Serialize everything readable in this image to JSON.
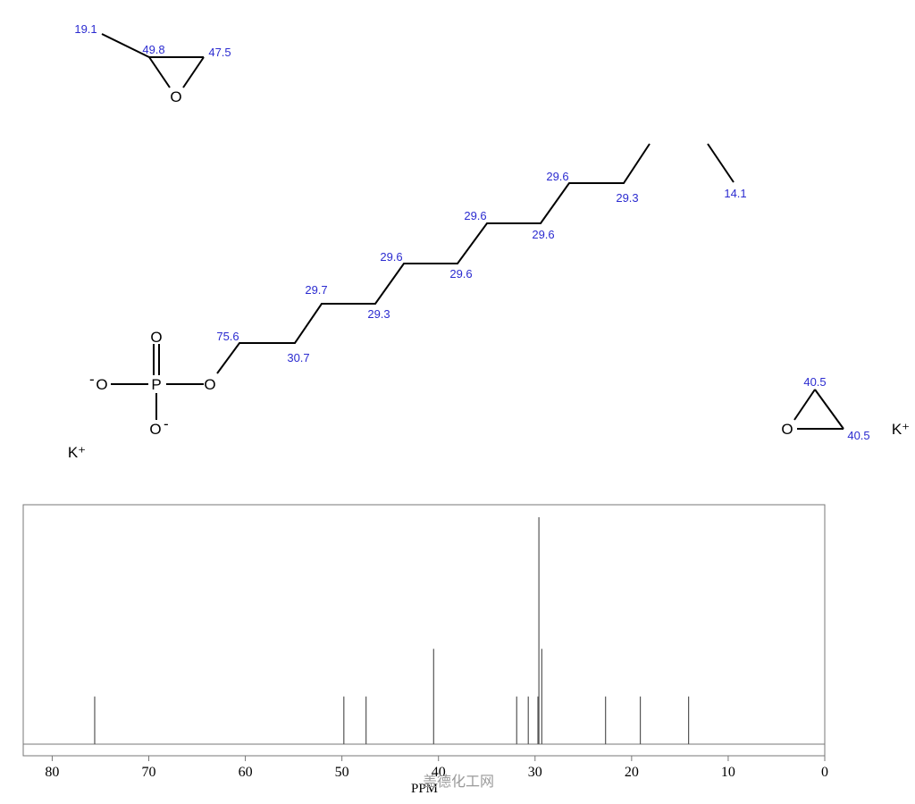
{
  "molecule": {
    "atoms": {
      "o_a": "O",
      "o_b": "O",
      "o_c": "O",
      "o_d": "O",
      "o_minus_1": "O",
      "o_minus_2": "O",
      "p": "P",
      "k1": "K⁺",
      "k2": "K⁺",
      "minus": "-"
    },
    "shifts": {
      "epox1_ch3": "19.1",
      "epox1_ch": "49.8",
      "epox1_ch2": "47.5",
      "c1": "75.6",
      "c2": "30.7",
      "c3": "29.7",
      "c4": "29.3",
      "c5": "29.6",
      "c6": "29.6",
      "c7": "29.6",
      "c8": "29.6",
      "c9": "29.6",
      "c10": "29.3",
      "c_term": "14.1",
      "epox2_top": "40.5",
      "epox2_right": "40.5"
    }
  },
  "chart_data": {
    "type": "bar",
    "title": "",
    "xlabel": "PPM",
    "ylabel": "",
    "xlim": [
      83,
      0
    ],
    "x_ticks": [
      "80",
      "70",
      "60",
      "50",
      "40",
      "30",
      "20",
      "10",
      "0"
    ],
    "peaks": [
      {
        "ppm": 75.6,
        "intensity": 0.21
      },
      {
        "ppm": 49.8,
        "intensity": 0.21
      },
      {
        "ppm": 47.5,
        "intensity": 0.21
      },
      {
        "ppm": 40.5,
        "intensity": 0.42
      },
      {
        "ppm": 31.9,
        "intensity": 0.21
      },
      {
        "ppm": 30.7,
        "intensity": 0.21
      },
      {
        "ppm": 29.7,
        "intensity": 0.21
      },
      {
        "ppm": 29.6,
        "intensity": 1.0
      },
      {
        "ppm": 29.3,
        "intensity": 0.42
      },
      {
        "ppm": 22.7,
        "intensity": 0.21
      },
      {
        "ppm": 19.1,
        "intensity": 0.21
      },
      {
        "ppm": 14.1,
        "intensity": 0.21
      }
    ],
    "grid": false
  },
  "watermark": "盖德化工网",
  "colors": {
    "shift_label": "#2b2bd0",
    "peak": "#555555",
    "frame": "#777777"
  }
}
